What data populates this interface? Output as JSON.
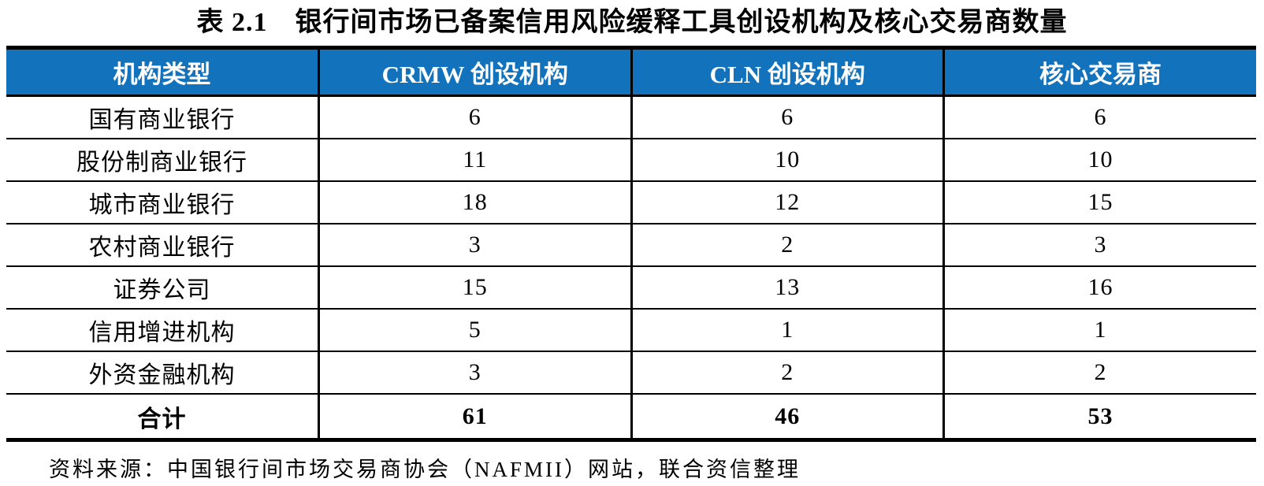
{
  "page": {
    "title": "表 2.1　银行间市场已备案信用风险缓释工具创设机构及核心交易商数量",
    "source_note": "资料来源：中国银行间市场交易商协会（NAFMII）网站，联合资信整理"
  },
  "colors": {
    "header_bg": "#1272BC",
    "header_text": "#FFFFFF",
    "border": "#000000",
    "body_text": "#000000"
  },
  "table": {
    "columns": [
      "机构类型",
      "CRMW 创设机构",
      "CLN 创设机构",
      "核心交易商"
    ],
    "rows": [
      {
        "label": "国有商业银行",
        "crmw": "6",
        "cln": "6",
        "core_dealer": "6"
      },
      {
        "label": "股份制商业银行",
        "crmw": "11",
        "cln": "10",
        "core_dealer": "10"
      },
      {
        "label": "城市商业银行",
        "crmw": "18",
        "cln": "12",
        "core_dealer": "15"
      },
      {
        "label": "农村商业银行",
        "crmw": "3",
        "cln": "2",
        "core_dealer": "3"
      },
      {
        "label": "证券公司",
        "crmw": "15",
        "cln": "13",
        "core_dealer": "16"
      },
      {
        "label": "信用增进机构",
        "crmw": "5",
        "cln": "1",
        "core_dealer": "1"
      },
      {
        "label": "外资金融机构",
        "crmw": "3",
        "cln": "2",
        "core_dealer": "2"
      },
      {
        "label": "合计",
        "crmw": "61",
        "cln": "46",
        "core_dealer": "53"
      }
    ]
  }
}
